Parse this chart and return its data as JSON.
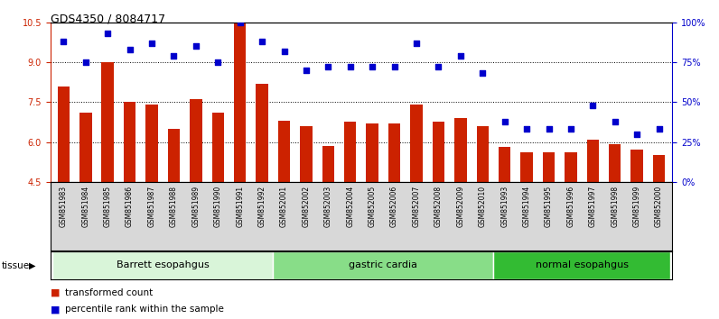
{
  "title": "GDS4350 / 8084717",
  "samples": [
    "GSM851983",
    "GSM851984",
    "GSM851985",
    "GSM851986",
    "GSM851987",
    "GSM851988",
    "GSM851989",
    "GSM851990",
    "GSM851991",
    "GSM851992",
    "GSM852001",
    "GSM852002",
    "GSM852003",
    "GSM852004",
    "GSM852005",
    "GSM852006",
    "GSM852007",
    "GSM852008",
    "GSM852009",
    "GSM852010",
    "GSM851993",
    "GSM851994",
    "GSM851995",
    "GSM851996",
    "GSM851997",
    "GSM851998",
    "GSM851999",
    "GSM852000"
  ],
  "bar_values": [
    8.1,
    7.1,
    9.0,
    7.5,
    7.4,
    6.5,
    7.6,
    7.1,
    10.5,
    8.2,
    6.8,
    6.6,
    5.85,
    6.75,
    6.7,
    6.7,
    7.4,
    6.75,
    6.9,
    6.6,
    5.8,
    5.6,
    5.6,
    5.6,
    6.1,
    5.9,
    5.7,
    5.5
  ],
  "dot_values": [
    88,
    75,
    93,
    83,
    87,
    79,
    85,
    75,
    100,
    88,
    82,
    70,
    72,
    72,
    72,
    72,
    87,
    72,
    79,
    68,
    38,
    33,
    33,
    33,
    48,
    38,
    30,
    33
  ],
  "groups": [
    {
      "label": "Barrett esopahgus",
      "start": 0,
      "end": 9,
      "color": "#d9f5d9"
    },
    {
      "label": "gastric cardia",
      "start": 10,
      "end": 19,
      "color": "#88dd88"
    },
    {
      "label": "normal esopahgus",
      "start": 20,
      "end": 27,
      "color": "#33bb33"
    }
  ],
  "bar_color": "#cc2200",
  "dot_color": "#0000cc",
  "ylim_left": [
    4.5,
    10.5
  ],
  "ylim_right": [
    0,
    100
  ],
  "yticks_left": [
    4.5,
    6.0,
    7.5,
    9.0,
    10.5
  ],
  "yticks_right": [
    0,
    25,
    50,
    75,
    100
  ],
  "ytick_labels_right": [
    "0%",
    "25%",
    "50%",
    "75%",
    "100%"
  ],
  "hlines": [
    6.0,
    7.5,
    9.0
  ],
  "legend_bar_label": "transformed count",
  "legend_dot_label": "percentile rank within the sample",
  "tissue_label": "tissue",
  "background_color": "#ffffff",
  "title_fontsize": 9,
  "tick_fontsize": 7,
  "label_fontsize": 6,
  "group_fontsize": 8
}
